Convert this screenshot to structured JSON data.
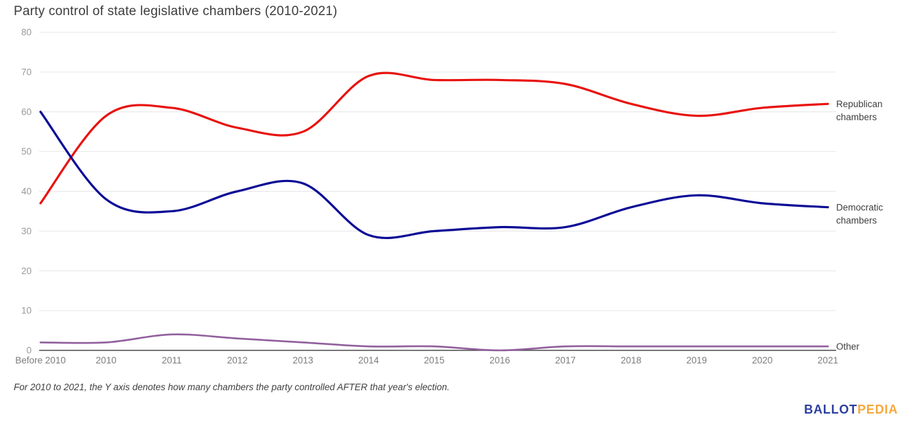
{
  "title": "Party control of state legislative chambers (2010-2021)",
  "footnote": "For 2010 to 2021, the Y axis denotes how many chambers the party controlled AFTER that year's election.",
  "logo": {
    "ballot": "BALLOT",
    "pedia": "PEDIA"
  },
  "colors": {
    "republican": "#e8120e",
    "democratic": "#0a0a96",
    "other": "#915f9d",
    "gridline": "#e6e6e6",
    "axis_line": "#4a4a4a",
    "y_tick_text": "#9a9a9a",
    "x_tick_text": "#7c7c7c",
    "series_label_text": "#3f3f3f",
    "logo_blue": "#2d3f9e",
    "logo_orange": "#f7a83b"
  },
  "chart_data": {
    "type": "line",
    "title": "Party control of state legislative chambers (2010-2021)",
    "categories": [
      "Before 2010",
      "2010",
      "2011",
      "2012",
      "2013",
      "2014",
      "2015",
      "2016",
      "2017",
      "2018",
      "2019",
      "2020",
      "2021"
    ],
    "series": [
      {
        "name": "Republican chambers",
        "label_lines": [
          "Republican",
          "chambers"
        ],
        "color": "#e8120e",
        "values": [
          37,
          59,
          61,
          56,
          55,
          69,
          68,
          68,
          67,
          62,
          59,
          61,
          62
        ]
      },
      {
        "name": "Democratic chambers",
        "label_lines": [
          "Democratic",
          "chambers"
        ],
        "color": "#0a0a96",
        "values": [
          60,
          38,
          35,
          40,
          42,
          29,
          30,
          31,
          31,
          36,
          39,
          37,
          36
        ]
      },
      {
        "name": "Other",
        "label_lines": [
          "Other"
        ],
        "color": "#915f9d",
        "values": [
          2,
          2,
          4,
          3,
          2,
          1,
          1,
          0,
          1,
          1,
          1,
          1,
          1
        ]
      }
    ],
    "xlabel": "",
    "ylabel": "",
    "ylim": [
      0,
      80
    ],
    "yticks": [
      0,
      10,
      20,
      30,
      40,
      50,
      60,
      70,
      80
    ],
    "grid": true,
    "smooth": true,
    "legend_position": "right-of-line-ends"
  }
}
